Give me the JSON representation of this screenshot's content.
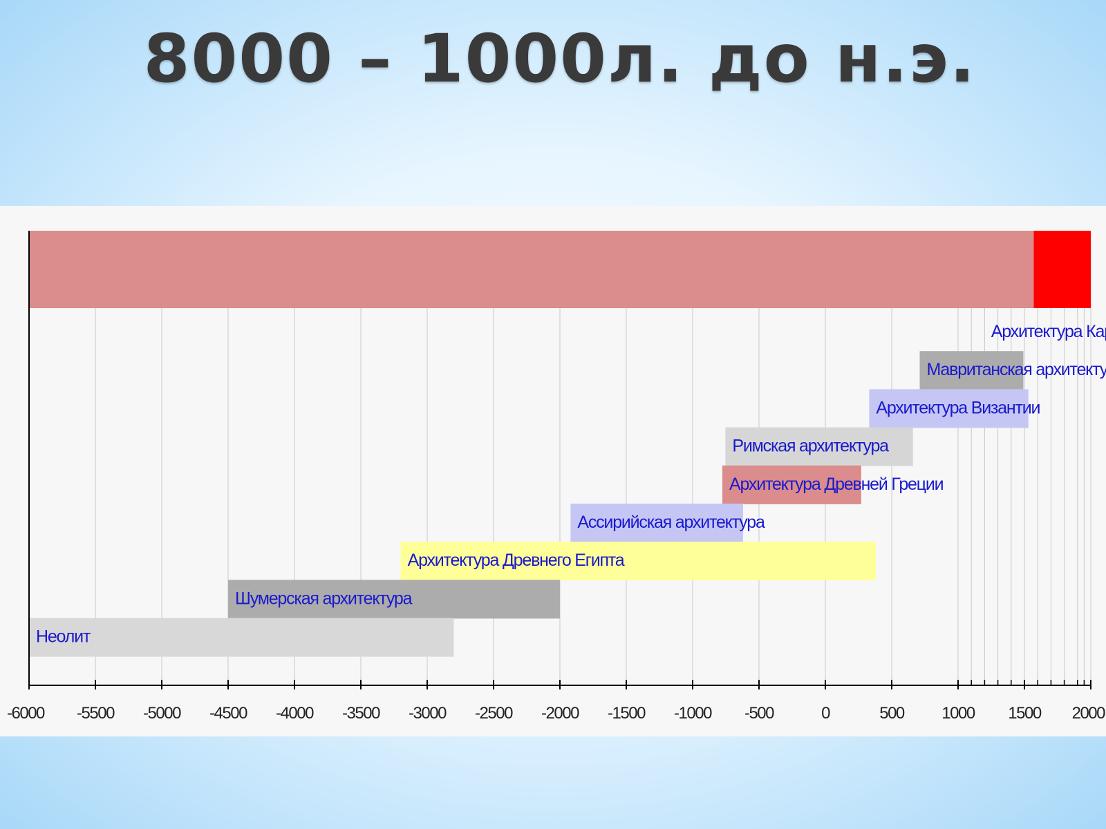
{
  "slide": {
    "title": "8000 – 1000л. до н.э."
  },
  "chart_data": {
    "type": "bar",
    "orientation": "horizontal-timeline",
    "xlim": [
      -6000,
      2000
    ],
    "x_ticks": [
      -6000,
      -5500,
      -5000,
      -4500,
      -4000,
      -3500,
      -3000,
      -2500,
      -2000,
      -1500,
      -1000,
      -500,
      0,
      500,
      1000,
      1500,
      2000
    ],
    "grid": true,
    "top_band": [
      {
        "start": -6000,
        "end": 1570,
        "color": "#db8c8c"
      },
      {
        "start": 1570,
        "end": 2000,
        "color": "#ff0000"
      }
    ],
    "series": [
      {
        "name": "Архитектура Каролингов",
        "start": 780,
        "end": 900,
        "color": "#f7f7f7"
      },
      {
        "name": "Мавританская архитектура",
        "start": 711,
        "end": 1492,
        "color": "#acacac"
      },
      {
        "name": "Архитектура Византии",
        "start": 330,
        "end": 1530,
        "color": "#c6c6f5"
      },
      {
        "name": "Римская архитектура",
        "start": -753,
        "end": 660,
        "color": "#d6d6d6"
      },
      {
        "name": "Архитектура Древней Греции",
        "start": -776,
        "end": 270,
        "color": "#db8c8c"
      },
      {
        "name": "Ассирийская архитектура",
        "start": -1920,
        "end": -620,
        "color": "#c6c6f5"
      },
      {
        "name": "Архитектура Древнего Египта",
        "start": -3200,
        "end": 380,
        "color": "#ffff99"
      },
      {
        "name": "Шумерская архитектура",
        "start": -4500,
        "end": -2000,
        "color": "#acacac"
      },
      {
        "name": "Неолит",
        "start": -6000,
        "end": -2800,
        "color": "#d8d8d8"
      }
    ]
  }
}
